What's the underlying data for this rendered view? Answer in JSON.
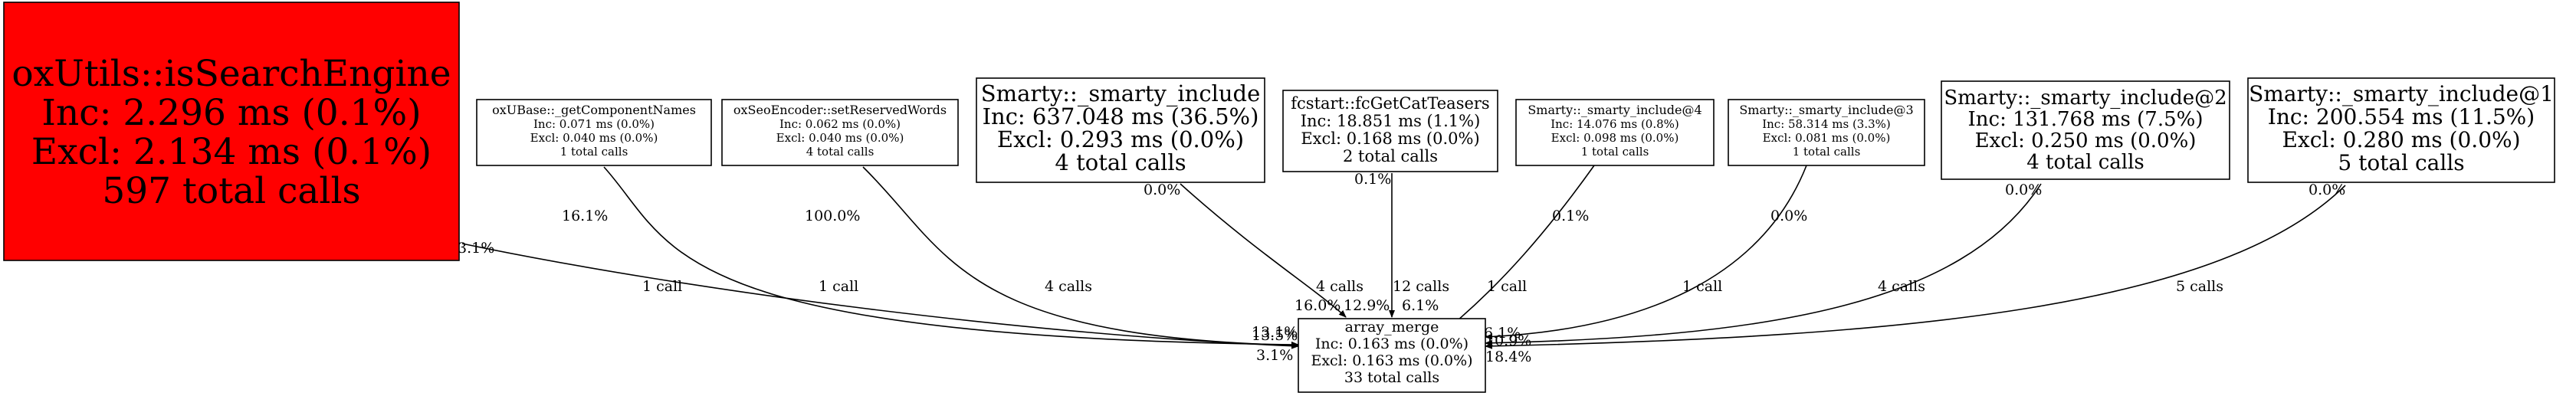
{
  "nodes": {
    "isSearchEngine": {
      "name": "oxUtils::isSearchEngine",
      "inc": "Inc: 2.296 ms (0.1%)",
      "excl": "Excl: 2.134 ms (0.1%)",
      "calls": "597 total calls",
      "fill": "#ff0000"
    },
    "getComponentNames": {
      "name": "oxUBase::_getComponentNames",
      "inc": "Inc: 0.071 ms (0.0%)",
      "excl": "Excl: 0.040 ms (0.0%)",
      "calls": "1 total calls"
    },
    "setReservedWords": {
      "name": "oxSeoEncoder::setReservedWords",
      "inc": "Inc: 0.062 ms (0.0%)",
      "excl": "Excl: 0.040 ms (0.0%)",
      "calls": "4 total calls"
    },
    "smartyInclude": {
      "name": "Smarty::_smarty_include",
      "inc": "Inc: 637.048 ms (36.5%)",
      "excl": "Excl: 0.293 ms (0.0%)",
      "calls": "4 total calls"
    },
    "fcGetCatTeasers": {
      "name": "fcstart::fcGetCatTeasers",
      "inc": "Inc: 18.851 ms (1.1%)",
      "excl": "Excl: 0.168 ms (0.0%)",
      "calls": "2 total calls"
    },
    "smartyInclude4": {
      "name": "Smarty::_smarty_include@4",
      "inc": "Inc: 14.076 ms (0.8%)",
      "excl": "Excl: 0.098 ms (0.0%)",
      "calls": "1 total calls"
    },
    "smartyInclude3": {
      "name": "Smarty::_smarty_include@3",
      "inc": "Inc: 58.314 ms (3.3%)",
      "excl": "Excl: 0.081 ms (0.0%)",
      "calls": "1 total calls"
    },
    "smartyInclude2": {
      "name": "Smarty::_smarty_include@2",
      "inc": "Inc: 131.768 ms (7.5%)",
      "excl": "Excl: 0.250 ms (0.0%)",
      "calls": "4 total calls"
    },
    "smartyInclude1": {
      "name": "Smarty::_smarty_include@1",
      "inc": "Inc: 200.554 ms (11.5%)",
      "excl": "Excl: 0.280 ms (0.0%)",
      "calls": "5 total calls"
    },
    "arrayMerge": {
      "name": "array_merge",
      "inc": "Inc: 0.163 ms (0.0%)",
      "excl": "Excl: 0.163 ms (0.0%)",
      "calls": "33 total calls"
    }
  },
  "edges": {
    "e1": {
      "label": "1 call",
      "src_pct": "3.1%",
      "dst_pct": "3.1%"
    },
    "e2": {
      "label": "1 call",
      "src_pct": "16.1%",
      "dst_pct": "13.5%"
    },
    "e3": {
      "label": "4 calls",
      "src_pct": "100.0%",
      "dst_pct": "13.1%"
    },
    "e4": {
      "label": "4 calls",
      "src_pct": "0.0%",
      "dst_pct": "16.0%"
    },
    "e5": {
      "label": "12 calls",
      "src_pct": "0.1%",
      "dst_pct": "12.9%"
    },
    "e6": {
      "label": "1 call",
      "src_pct": "0.1%",
      "dst_pct": "6.1%"
    },
    "e7": {
      "label": "1 call",
      "src_pct": "0.0%",
      "dst_pct": "6.1%"
    },
    "e8": {
      "label": "4 calls",
      "src_pct": "0.0%",
      "dst_pct": "10.9%"
    },
    "e9": {
      "label": "5 calls",
      "src_pct": "0.0%",
      "dst_pct": "18.4%"
    }
  }
}
